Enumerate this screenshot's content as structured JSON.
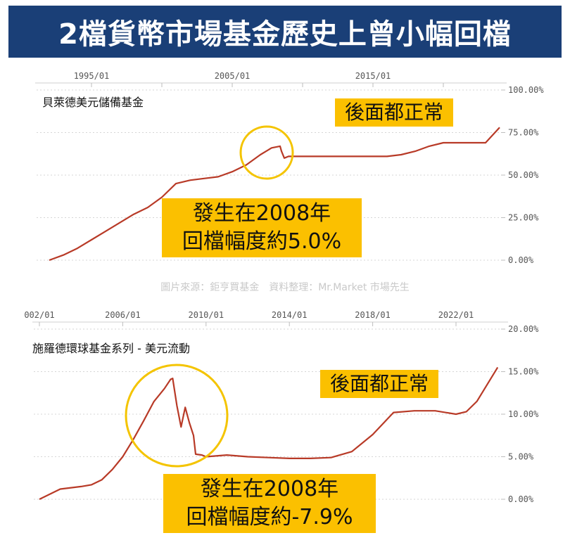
{
  "banner": {
    "title": "2檔貨幣市場基金歷史上曾小幅回檔"
  },
  "credit": "圖片來源：鉅亨買基金　資料整理：Mr.Market 市場先生",
  "colors": {
    "banner_bg": "#1a3f77",
    "callout": "#fbc000",
    "line": "#b83a27",
    "circle": "#f4c400"
  },
  "chart_data": [
    {
      "type": "line",
      "title": "貝萊德美元儲備基金",
      "x_tick_labels": [
        "1995/01",
        "2005/01",
        "2015/01"
      ],
      "x_ticks": [
        1995,
        2000,
        2005,
        2010,
        2015,
        2020
      ],
      "xlim": [
        1991.5,
        2024.5
      ],
      "y_tick_labels": [
        "100.00%",
        "75.00%",
        "50.00%",
        "25.00%",
        "0.00%"
      ],
      "ylim": [
        0,
        100
      ],
      "grid": "horizontal-dotted",
      "annotation_top": "後面都正常",
      "annotation_bottom": [
        "發生在2008年",
        "回檔幅度約5.0%"
      ],
      "x": [
        1992.0,
        1993.0,
        1994.0,
        1995.0,
        1996.0,
        1997.0,
        1998.0,
        1999.0,
        2000.0,
        2001.0,
        2002.0,
        2003.0,
        2004.0,
        2005.0,
        2006.0,
        2007.0,
        2007.8,
        2008.4,
        2008.5,
        2008.7,
        2009.0,
        2010.0,
        2012.0,
        2014.0,
        2016.0,
        2017.0,
        2018.0,
        2019.0,
        2020.0,
        2021.0,
        2022.0,
        2023.0,
        2024.0
      ],
      "y": [
        0,
        3,
        7,
        12,
        17,
        22,
        27,
        31,
        37,
        45,
        47,
        48,
        49,
        52,
        56,
        62,
        66,
        67,
        64,
        60,
        61,
        61,
        61,
        61,
        61,
        62,
        64,
        67,
        69,
        69,
        69,
        69,
        78
      ]
    },
    {
      "type": "line",
      "title": "施羅德環球基金系列 - 美元流動",
      "x_tick_labels": [
        "002/01",
        "2006/01",
        "2010/01",
        "2014/01",
        "2018/01",
        "2022/01"
      ],
      "x_ticks": [
        2002,
        2006,
        2010,
        2014,
        2018,
        2022
      ],
      "xlim": [
        2002.0,
        2024.5
      ],
      "y_tick_labels": [
        "20.00%",
        "15.00%",
        "10.00%",
        "5.00%",
        "0.00%"
      ],
      "ylim": [
        0,
        20
      ],
      "grid": "horizontal-dotted",
      "annotation_top": "後面都正常",
      "annotation_bottom": [
        "發生在2008年",
        "回檔幅度約-7.9%"
      ],
      "x": [
        2002.0,
        2003.0,
        2004.0,
        2004.5,
        2005.0,
        2005.5,
        2006.0,
        2006.5,
        2007.0,
        2007.5,
        2008.0,
        2008.3,
        2008.4,
        2008.6,
        2008.8,
        2009.0,
        2009.2,
        2009.4,
        2009.5,
        2009.8,
        2010.0,
        2011.0,
        2012.0,
        2013.0,
        2014.0,
        2015.0,
        2016.0,
        2017.0,
        2018.0,
        2019.0,
        2020.0,
        2021.0,
        2022.0,
        2022.5,
        2023.0,
        2024.0
      ],
      "y": [
        0.0,
        1.2,
        1.5,
        1.7,
        2.3,
        3.5,
        5.0,
        7.0,
        9.2,
        11.5,
        13.0,
        14.1,
        14.2,
        11.0,
        8.5,
        10.8,
        9.0,
        7.5,
        5.3,
        5.2,
        5.0,
        5.2,
        5.0,
        4.9,
        4.8,
        4.8,
        4.9,
        5.6,
        7.6,
        10.2,
        10.4,
        10.4,
        10.0,
        10.3,
        11.5,
        15.5
      ]
    }
  ]
}
